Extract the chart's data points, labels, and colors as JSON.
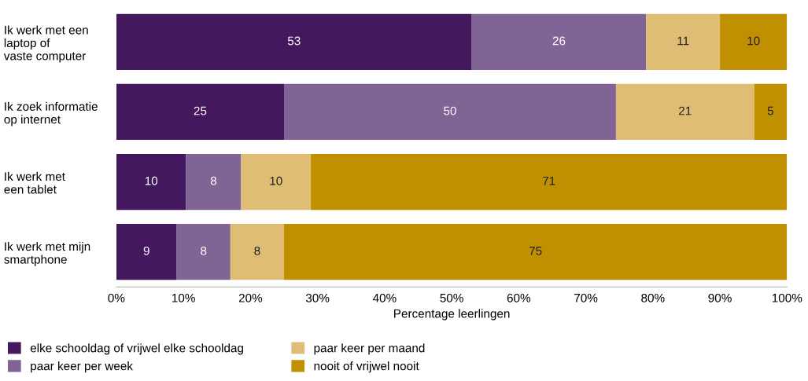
{
  "chart_data": {
    "type": "bar",
    "orientation": "horizontal",
    "stacked": true,
    "categories": [
      "Ik werk met een\nlaptop of\nvaste computer",
      "Ik zoek informatie\nop internet",
      "Ik werk met\neen tablet",
      "Ik werk met mijn\nsmartphone"
    ],
    "series": [
      {
        "name": "elke schooldag of vrijwel elke schooldag",
        "color": "#44185e",
        "values": [
          53,
          25,
          10.4,
          9
        ],
        "value_labels": [
          "53",
          "25",
          "10",
          "9"
        ]
      },
      {
        "name": "paar keer per week",
        "color": "#816496",
        "values": [
          26,
          49.5,
          8.2,
          8
        ],
        "value_labels": [
          "26",
          "50",
          "8",
          "8"
        ]
      },
      {
        "name": "paar keer per maand",
        "color": "#dfbd74",
        "values": [
          11,
          20.6,
          10.4,
          8
        ],
        "value_labels": [
          "11",
          "21",
          "10",
          "8"
        ]
      },
      {
        "name": "nooit of vrijwel nooit",
        "color": "#c09000",
        "values": [
          10,
          4.9,
          71.0,
          75
        ],
        "value_labels": [
          "10",
          "5",
          "71",
          "75"
        ]
      }
    ],
    "xlim": [
      0,
      100
    ],
    "xticks": [
      {
        "value": 0,
        "label": "0%"
      },
      {
        "value": 10,
        "label": "10%"
      },
      {
        "value": 20,
        "label": "20%"
      },
      {
        "value": 30,
        "label": "30%"
      },
      {
        "value": 40,
        "label": "40%"
      },
      {
        "value": 50,
        "label": "50%"
      },
      {
        "value": 60,
        "label": "60%"
      },
      {
        "value": 70,
        "label": "70%"
      },
      {
        "value": 80,
        "label": "80%"
      },
      {
        "value": 90,
        "label": "90%"
      },
      {
        "value": 100,
        "label": "100%"
      }
    ],
    "xlabel": "Percentage leerlingen",
    "legend": "bottom",
    "grid": false
  }
}
